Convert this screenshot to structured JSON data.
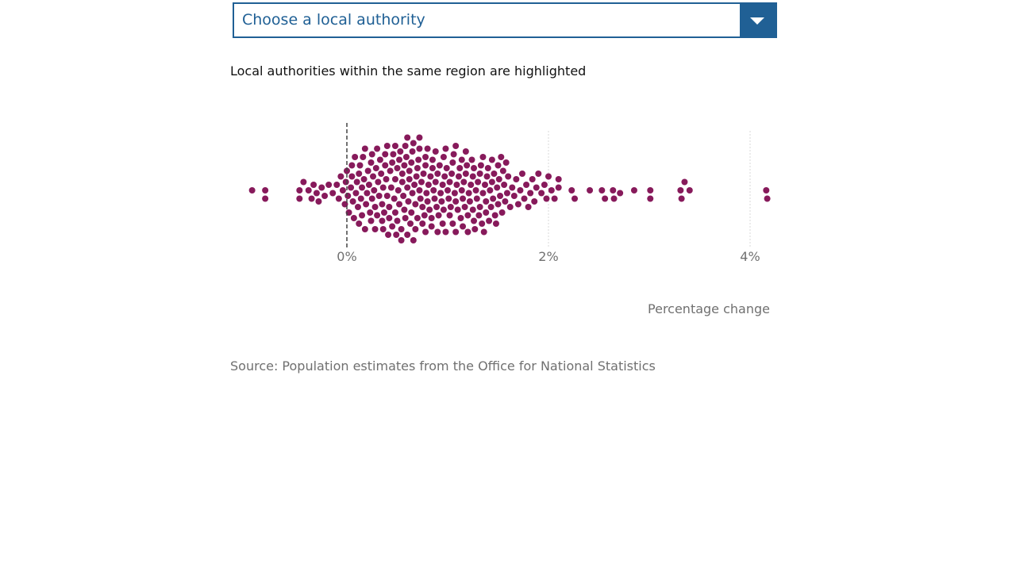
{
  "select": {
    "label": "Choose a local authority",
    "button_icon": "chevron-down-icon"
  },
  "subtitle": "Local authorities within the same region are highlighted",
  "source": "Source: Population estimates from the Office for National Statistics",
  "colors": {
    "dot": "#871a5b",
    "accent": "#206095",
    "axis_text": "#707070"
  },
  "chart_data": {
    "type": "scatter",
    "title": "",
    "xlabel": "Percentage change",
    "ylabel": "",
    "xlim": [
      -1.0,
      4.2
    ],
    "xticks": [
      0,
      2,
      4
    ],
    "xtick_labels": [
      "0%",
      "2%",
      "4%"
    ],
    "reference_line": 0,
    "grid": true,
    "layout": "beeswarm",
    "series": [
      {
        "values": [
          -0.94,
          -0.81,
          -0.81,
          -0.47,
          -0.47,
          -0.43,
          -0.38,
          -0.35,
          -0.33,
          -0.3,
          -0.28,
          -0.25,
          -0.22,
          -0.18,
          -0.14,
          -0.1,
          -0.08,
          -0.06,
          -0.04,
          -0.02,
          -0.01,
          0.0,
          0.01,
          0.02,
          0.04,
          0.05,
          0.06,
          0.07,
          0.08,
          0.09,
          0.1,
          0.11,
          0.12,
          0.13,
          0.14,
          0.15,
          0.16,
          0.17,
          0.18,
          0.19,
          0.2,
          0.21,
          0.22,
          0.23,
          0.24,
          0.25,
          0.26,
          0.27,
          0.28,
          0.29,
          0.3,
          0.31,
          0.32,
          0.33,
          0.34,
          0.35,
          0.36,
          0.37,
          0.38,
          0.39,
          0.4,
          0.41,
          0.42,
          0.43,
          0.44,
          0.45,
          0.46,
          0.47,
          0.48,
          0.49,
          0.5,
          0.51,
          0.52,
          0.53,
          0.54,
          0.55,
          0.56,
          0.57,
          0.58,
          0.59,
          0.6,
          0.61,
          0.62,
          0.63,
          0.64,
          0.65,
          0.66,
          0.67,
          0.68,
          0.69,
          0.7,
          0.71,
          0.72,
          0.73,
          0.74,
          0.75,
          0.76,
          0.77,
          0.78,
          0.79,
          0.8,
          0.81,
          0.82,
          0.83,
          0.84,
          0.85,
          0.86,
          0.87,
          0.88,
          0.89,
          0.9,
          0.91,
          0.92,
          0.93,
          0.94,
          0.95,
          0.96,
          0.97,
          0.98,
          0.99,
          1.0,
          1.01,
          1.02,
          1.03,
          1.04,
          1.05,
          1.06,
          1.07,
          1.08,
          1.09,
          1.1,
          1.11,
          1.12,
          1.13,
          1.14,
          1.15,
          1.16,
          1.17,
          1.18,
          1.19,
          1.2,
          1.21,
          1.22,
          1.23,
          1.24,
          1.25,
          1.26,
          1.27,
          1.28,
          1.29,
          1.3,
          1.31,
          1.32,
          1.33,
          1.34,
          1.35,
          1.36,
          1.37,
          1.38,
          1.39,
          1.4,
          1.41,
          1.42,
          1.43,
          1.44,
          1.45,
          1.46,
          1.47,
          1.48,
          1.49,
          1.5,
          1.51,
          1.52,
          1.53,
          1.54,
          1.55,
          1.56,
          1.57,
          1.58,
          1.59,
          1.6,
          1.62,
          1.64,
          1.66,
          1.68,
          1.7,
          1.72,
          1.74,
          1.76,
          1.78,
          1.8,
          1.82,
          1.84,
          1.86,
          1.88,
          1.9,
          1.93,
          1.96,
          1.98,
          2.0,
          2.03,
          2.06,
          2.1,
          2.1,
          2.23,
          2.26,
          2.41,
          2.53,
          2.56,
          2.64,
          2.65,
          2.71,
          2.85,
          3.01,
          3.01,
          3.31,
          3.32,
          3.35,
          3.4,
          4.16,
          4.17,
          0.05,
          0.12,
          0.18,
          0.24,
          0.3,
          0.36,
          0.42,
          0.48,
          0.54,
          0.6,
          0.66,
          0.72,
          0.78,
          0.84,
          0.9,
          0.96,
          1.02,
          1.08,
          1.14,
          1.2,
          1.26,
          1.32,
          1.38,
          1.44,
          1.5,
          0.15,
          0.25,
          0.35,
          0.45,
          0.55,
          0.65,
          0.75,
          0.85,
          0.95,
          1.05,
          1.15,
          1.25,
          1.35,
          0.28,
          0.38,
          0.48,
          0.58,
          0.68,
          0.78,
          0.88,
          0.98,
          1.08,
          1.18,
          0.4,
          0.5,
          0.6,
          0.7,
          0.8,
          0.52,
          0.62,
          0.72,
          0.57,
          0.64
        ]
      }
    ]
  }
}
